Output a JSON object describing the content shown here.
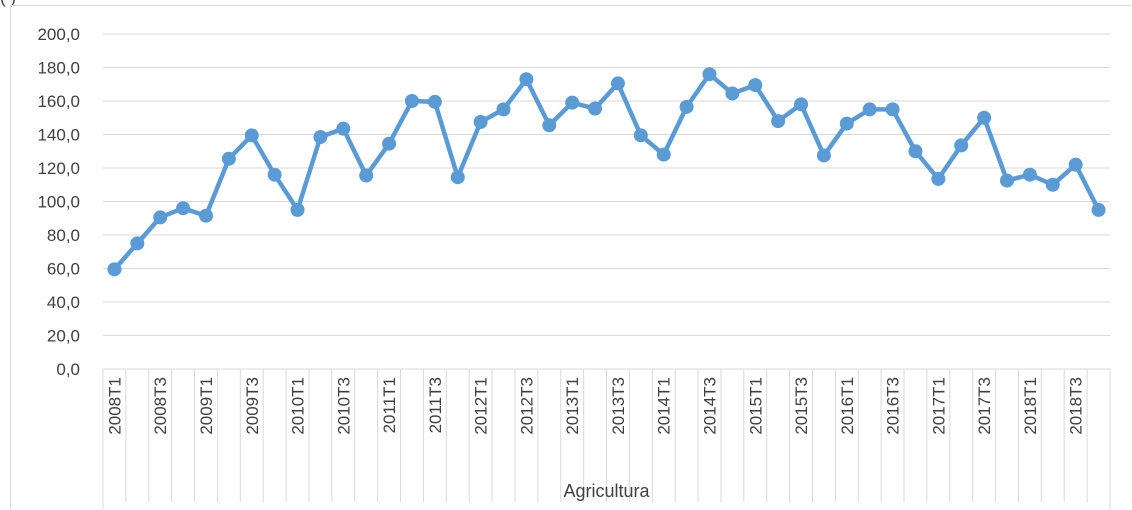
{
  "header_fragment": "(                  )",
  "chart_data": {
    "type": "line",
    "title": "",
    "xlabel": "Agricultura",
    "ylabel": "",
    "ylim": [
      0,
      200
    ],
    "ytick_step": 20,
    "ytick_labels": [
      "0,0",
      "20,0",
      "40,0",
      "60,0",
      "80,0",
      "100,0",
      "120,0",
      "140,0",
      "160,0",
      "180,0",
      "200,0"
    ],
    "grid": true,
    "legend": "none",
    "series_color": "#5b9bd5",
    "categories": [
      "2008T1",
      "2008T2",
      "2008T3",
      "2008T4",
      "2009T1",
      "2009T2",
      "2009T3",
      "2009T4",
      "2010T1",
      "2010T2",
      "2010T3",
      "2010T4",
      "2011T1",
      "2011T2",
      "2011T3",
      "2011T4",
      "2012T1",
      "2012T2",
      "2012T3",
      "2012T4",
      "2013T1",
      "2013T2",
      "2013T3",
      "2013T4",
      "2014T1",
      "2014T2",
      "2014T3",
      "2014T4",
      "2015T1",
      "2015T2",
      "2015T3",
      "2015T4",
      "2016T1",
      "2016T2",
      "2016T3",
      "2016T4",
      "2017T1",
      "2017T2",
      "2017T3",
      "2017T4",
      "2018T1",
      "2018T2",
      "2018T3",
      "2018T4"
    ],
    "x_tick_labels": [
      "2008T1",
      "",
      "2008T3",
      "",
      "2009T1",
      "",
      "2009T3",
      "",
      "2010T1",
      "",
      "2010T3",
      "",
      "2011T1",
      "",
      "2011T3",
      "",
      "2012T1",
      "",
      "2012T3",
      "",
      "2013T1",
      "",
      "2013T3",
      "",
      "2014T1",
      "",
      "2014T3",
      "",
      "2015T1",
      "",
      "2015T3",
      "",
      "2016T1",
      "",
      "2016T3",
      "",
      "2017T1",
      "",
      "2017T3",
      "",
      "2018T1",
      "",
      "2018T3",
      ""
    ],
    "series": [
      {
        "values": [
          59.5,
          75.0,
          90.5,
          96.0,
          91.5,
          125.5,
          139.5,
          116.0,
          95.0,
          138.5,
          143.5,
          115.5,
          134.5,
          160.0,
          159.5,
          114.5,
          147.5,
          155.0,
          173.0,
          145.5,
          159.0,
          155.5,
          170.5,
          139.5,
          128.0,
          156.5,
          176.0,
          164.5,
          169.5,
          148.0,
          158.0,
          127.5,
          146.5,
          155.0,
          155.0,
          130.0,
          113.5,
          133.5,
          150.0,
          112.5,
          116.0,
          110.0,
          122.0,
          95.0
        ]
      }
    ]
  }
}
